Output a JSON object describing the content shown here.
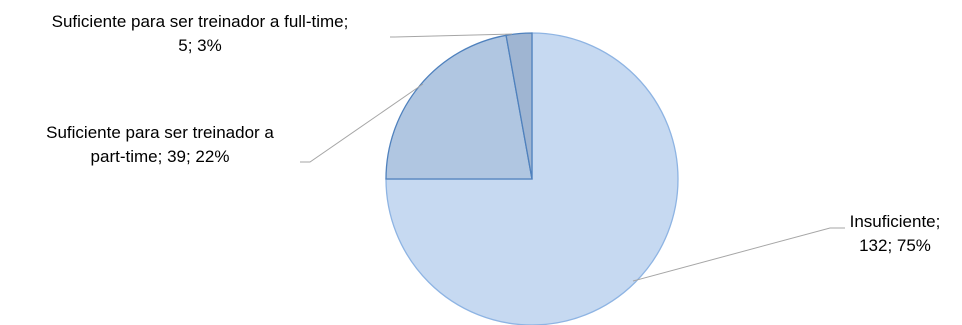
{
  "chart_data": {
    "type": "pie",
    "title": "",
    "slices": [
      {
        "label": "Insuficiente",
        "value": 132,
        "percent": "75%",
        "color": "#c6d9f1",
        "stroke": "#8eb4e3"
      },
      {
        "label": "Suficiente para ser treinador a part-time",
        "value": 39,
        "percent": "22%",
        "color": "#b0c6e1",
        "stroke": "#4f81bd"
      },
      {
        "label": "Suficiente para ser treinador a full-time",
        "value": 5,
        "percent": "3%",
        "color": "#9fb5d2",
        "stroke": "#4f81bd"
      }
    ],
    "data_labels": [
      {
        "lines": [
          "Insuficiente;",
          "132; 75%"
        ]
      },
      {
        "lines": [
          "Suficiente para ser treinador a",
          "part-time; 39; 22%"
        ]
      },
      {
        "lines": [
          "Suficiente para ser treinador a full-time;",
          "5; 3%"
        ]
      }
    ],
    "legend": "none"
  }
}
